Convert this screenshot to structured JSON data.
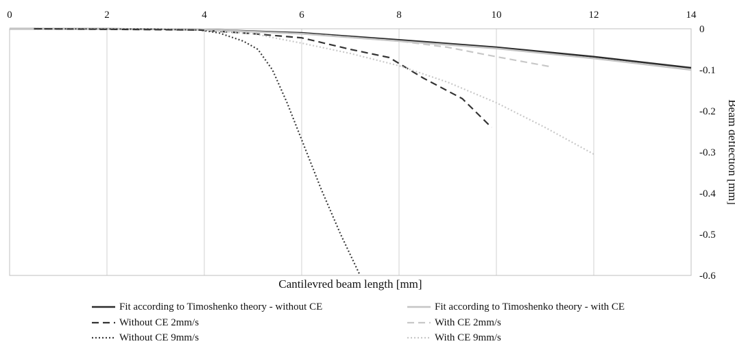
{
  "chart_data": {
    "type": "line",
    "title": "",
    "xlabel": "Cantilevred beam length [mm]",
    "ylabel": "Beam deflection [mm]",
    "xlim": [
      0,
      14
    ],
    "ylim": [
      -0.6,
      0
    ],
    "xticks": [
      0,
      2,
      4,
      6,
      8,
      10,
      12,
      14
    ],
    "xtick_labels": [
      "0",
      "2",
      "4",
      "6",
      "8",
      "10",
      "12",
      "14"
    ],
    "yticks": [
      0,
      -0.1,
      -0.2,
      -0.3,
      -0.4,
      -0.5,
      -0.6
    ],
    "ytick_labels": [
      "0",
      "-0.1",
      "-0.2",
      "-0.3",
      "-0.4",
      "-0.5",
      "-0.6"
    ],
    "x_axis_position": "top",
    "y_axis_position": "right",
    "grid": "vertical",
    "legend_position": "bottom",
    "series": [
      {
        "name": "Fit according to Timoshenko theory - without CE",
        "color": "#2b2b2b",
        "style": "solid",
        "x": [
          0,
          2,
          4,
          6,
          8,
          10,
          12,
          14
        ],
        "y": [
          0,
          0,
          -0.002,
          -0.01,
          -0.027,
          -0.045,
          -0.068,
          -0.095
        ]
      },
      {
        "name": "Fit according to Timoshenko theory - with CE",
        "color": "#c4c4c4",
        "style": "solid",
        "x": [
          0,
          2,
          4,
          6,
          8,
          10,
          12,
          14
        ],
        "y": [
          0,
          0,
          -0.002,
          -0.012,
          -0.03,
          -0.048,
          -0.072,
          -0.1
        ]
      },
      {
        "name": "Without CE 2mm/s",
        "color": "#333333",
        "style": "dashed",
        "x": [
          0.5,
          3.9,
          5.0,
          6.0,
          7.0,
          7.8,
          8.5,
          9.3,
          9.9
        ],
        "y": [
          0,
          -0.003,
          -0.012,
          -0.022,
          -0.05,
          -0.07,
          -0.12,
          -0.17,
          -0.24
        ]
      },
      {
        "name": "With CE 2mm/s",
        "color": "#c8c8c8",
        "style": "dashed",
        "x": [
          4.0,
          6.0,
          8.0,
          9.0,
          10.0,
          11.1
        ],
        "y": [
          -0.003,
          -0.012,
          -0.03,
          -0.045,
          -0.068,
          -0.092
        ]
      },
      {
        "name": "Without CE 9mm/s",
        "color": "#3a3a3a",
        "style": "dotted",
        "x": [
          0.5,
          3.0,
          3.9,
          4.3,
          4.8,
          5.1,
          5.4,
          5.7,
          6.0,
          6.4,
          6.8,
          7.2
        ],
        "y": [
          0,
          -0.001,
          -0.003,
          -0.01,
          -0.03,
          -0.05,
          -0.1,
          -0.18,
          -0.27,
          -0.39,
          -0.5,
          -0.6
        ]
      },
      {
        "name": "With CE 9mm/s",
        "color": "#c8c8c8",
        "style": "dotted",
        "x": [
          4.0,
          5.0,
          6.0,
          7.0,
          8.0,
          9.0,
          10.0,
          11.0,
          12.0
        ],
        "y": [
          -0.003,
          -0.012,
          -0.035,
          -0.06,
          -0.09,
          -0.13,
          -0.18,
          -0.24,
          -0.305
        ]
      }
    ]
  }
}
